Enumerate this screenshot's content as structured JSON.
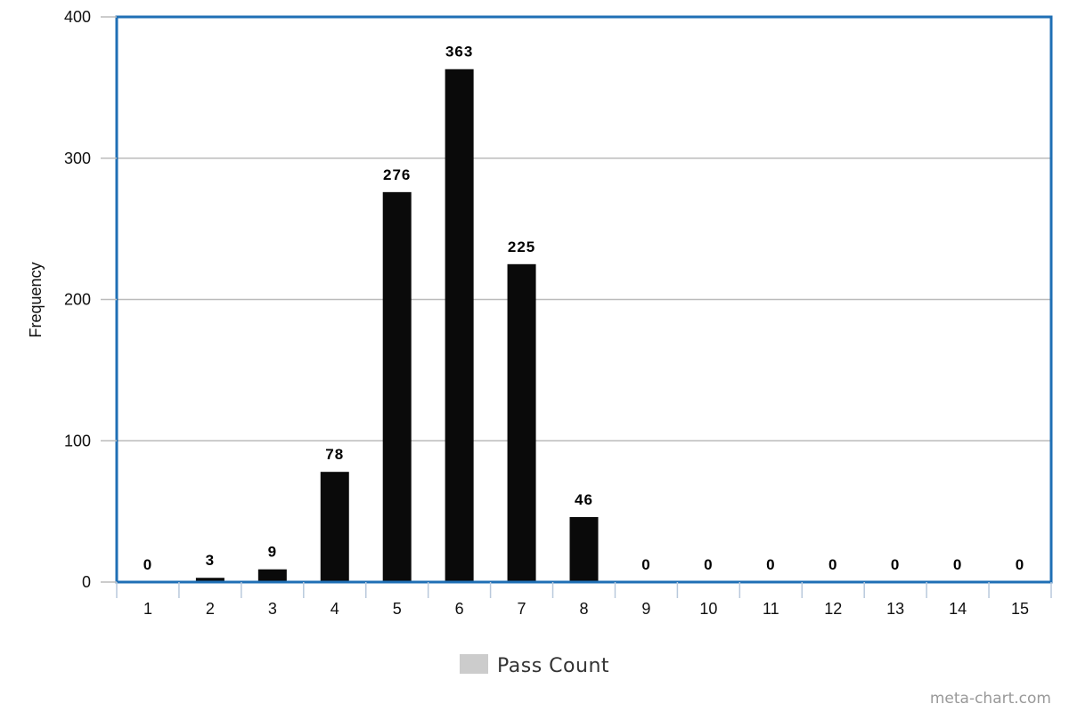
{
  "chart_data": {
    "type": "bar",
    "title": "",
    "xlabel": "",
    "ylabel": "Frequency",
    "categories": [
      "1",
      "2",
      "3",
      "4",
      "5",
      "6",
      "7",
      "8",
      "9",
      "10",
      "11",
      "12",
      "13",
      "14",
      "15"
    ],
    "series": [
      {
        "name": "Pass Count",
        "values": [
          0,
          3,
          9,
          78,
          276,
          363,
          225,
          46,
          0,
          0,
          0,
          0,
          0,
          0,
          0
        ]
      }
    ],
    "ylim": [
      0,
      400
    ],
    "yticks": [
      0,
      100,
      200,
      300,
      400
    ],
    "grid": true,
    "legend_position": "bottom-center",
    "colors": {
      "bar": "#0a0a0a",
      "legend_swatch": "#cccccc",
      "plot_border": "#1f6fb5",
      "grid": "#bbbbbb"
    }
  },
  "credit": "meta-chart.com"
}
